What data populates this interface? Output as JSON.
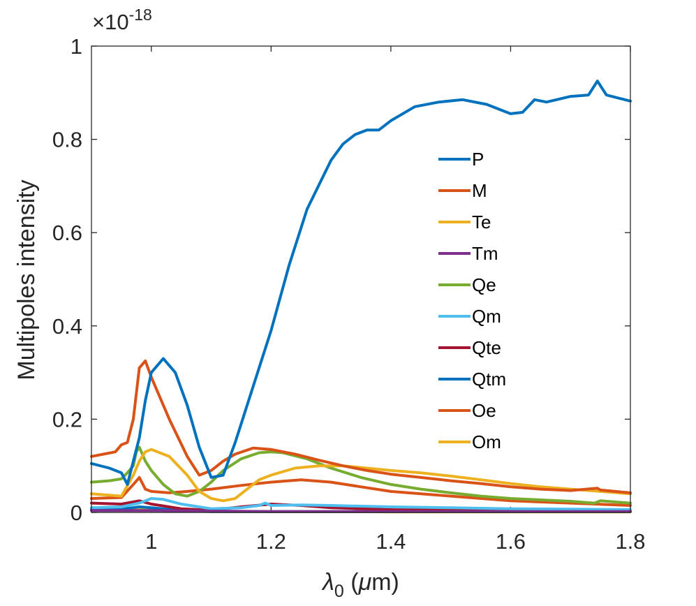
{
  "chart_data": {
    "type": "line",
    "title": "",
    "xlabel": "λ0 (μm)",
    "xlabel_symbol": "λ",
    "xlabel_subscript": "0",
    "xlabel_unit_open": " (",
    "xlabel_unit_mu": "μ",
    "xlabel_unit_rest": "m)",
    "ylabel": "Multipoles intensity",
    "y_exponent_label": "×10-18",
    "y_exponent_base": "×10",
    "y_exponent_power": "-18",
    "xlim": [
      0.9,
      1.8
    ],
    "ylim": [
      0,
      1
    ],
    "xticks": [
      1,
      1.2,
      1.4,
      1.6,
      1.8
    ],
    "xtick_labels": [
      "1",
      "1.2",
      "1.4",
      "1.6",
      "1.8"
    ],
    "yticks": [
      0,
      0.2,
      0.4,
      0.6,
      0.8,
      1
    ],
    "ytick_labels": [
      "0",
      "0.2",
      "0.4",
      "0.6",
      "0.8",
      "1"
    ],
    "legend_position": "right",
    "grid": false,
    "series": [
      {
        "name": "P",
        "color": "#0072BD",
        "x": [
          0.9,
          0.93,
          0.95,
          0.96,
          0.97,
          0.98,
          0.99,
          1.0,
          1.02,
          1.04,
          1.06,
          1.08,
          1.1,
          1.12,
          1.14,
          1.17,
          1.2,
          1.23,
          1.26,
          1.3,
          1.32,
          1.34,
          1.36,
          1.38,
          1.4,
          1.44,
          1.48,
          1.52,
          1.56,
          1.58,
          1.6,
          1.62,
          1.64,
          1.66,
          1.7,
          1.73,
          1.745,
          1.76,
          1.8
        ],
        "values": [
          0.105,
          0.095,
          0.085,
          0.06,
          0.11,
          0.16,
          0.24,
          0.3,
          0.33,
          0.3,
          0.23,
          0.14,
          0.075,
          0.08,
          0.15,
          0.27,
          0.39,
          0.53,
          0.65,
          0.755,
          0.79,
          0.81,
          0.82,
          0.82,
          0.84,
          0.87,
          0.88,
          0.885,
          0.875,
          0.865,
          0.855,
          0.858,
          0.885,
          0.88,
          0.892,
          0.895,
          0.925,
          0.895,
          0.882
        ]
      },
      {
        "name": "M",
        "color": "#D95319",
        "x": [
          0.9,
          0.92,
          0.94,
          0.95,
          0.96,
          0.97,
          0.98,
          0.99,
          1.0,
          1.03,
          1.06,
          1.08,
          1.1,
          1.12,
          1.14,
          1.17,
          1.2,
          1.24,
          1.28,
          1.32,
          1.36,
          1.4,
          1.45,
          1.5,
          1.55,
          1.6,
          1.65,
          1.7,
          1.745,
          1.75,
          1.8
        ],
        "values": [
          0.12,
          0.125,
          0.13,
          0.145,
          0.15,
          0.2,
          0.31,
          0.325,
          0.29,
          0.2,
          0.12,
          0.08,
          0.09,
          0.11,
          0.125,
          0.138,
          0.135,
          0.125,
          0.112,
          0.1,
          0.09,
          0.082,
          0.075,
          0.068,
          0.062,
          0.055,
          0.05,
          0.047,
          0.052,
          0.048,
          0.042
        ]
      },
      {
        "name": "Te",
        "color": "#EDB120",
        "x": [
          0.9,
          0.95,
          0.97,
          0.98,
          0.99,
          1.0,
          1.03,
          1.06,
          1.08,
          1.1,
          1.12,
          1.14,
          1.16,
          1.18,
          1.2,
          1.24,
          1.28,
          1.32,
          1.36,
          1.4,
          1.45,
          1.5,
          1.55,
          1.6,
          1.65,
          1.7,
          1.75,
          1.8
        ],
        "values": [
          0.04,
          0.035,
          0.08,
          0.11,
          0.13,
          0.135,
          0.12,
          0.08,
          0.045,
          0.03,
          0.025,
          0.03,
          0.05,
          0.07,
          0.08,
          0.095,
          0.1,
          0.1,
          0.095,
          0.09,
          0.085,
          0.078,
          0.07,
          0.062,
          0.055,
          0.05,
          0.045,
          0.04
        ]
      },
      {
        "name": "Tm",
        "color": "#7E2F8E",
        "x": [
          0.9,
          1.0,
          1.1,
          1.2,
          1.3,
          1.4,
          1.5,
          1.6,
          1.7,
          1.8
        ],
        "values": [
          0.004,
          0.004,
          0.003,
          0.002,
          0.002,
          0.002,
          0.002,
          0.002,
          0.002,
          0.002
        ]
      },
      {
        "name": "Qe",
        "color": "#77AC30",
        "x": [
          0.9,
          0.93,
          0.95,
          0.96,
          0.97,
          0.975,
          0.98,
          0.99,
          1.0,
          1.02,
          1.04,
          1.06,
          1.08,
          1.1,
          1.12,
          1.15,
          1.18,
          1.2,
          1.22,
          1.26,
          1.3,
          1.35,
          1.4,
          1.45,
          1.5,
          1.55,
          1.6,
          1.65,
          1.7,
          1.74,
          1.75,
          1.8
        ],
        "values": [
          0.065,
          0.068,
          0.072,
          0.085,
          0.1,
          0.13,
          0.14,
          0.11,
          0.09,
          0.06,
          0.04,
          0.035,
          0.045,
          0.065,
          0.09,
          0.115,
          0.128,
          0.13,
          0.128,
          0.115,
          0.095,
          0.075,
          0.06,
          0.05,
          0.042,
          0.035,
          0.03,
          0.027,
          0.024,
          0.02,
          0.025,
          0.02
        ]
      },
      {
        "name": "Qm",
        "color": "#4DBEEE",
        "x": [
          0.9,
          0.95,
          0.98,
          1.0,
          1.02,
          1.05,
          1.1,
          1.15,
          1.18,
          1.19,
          1.2,
          1.25,
          1.3,
          1.4,
          1.5,
          1.6,
          1.7,
          1.8
        ],
        "values": [
          0.01,
          0.012,
          0.02,
          0.03,
          0.028,
          0.018,
          0.008,
          0.01,
          0.015,
          0.02,
          0.015,
          0.016,
          0.015,
          0.012,
          0.01,
          0.008,
          0.007,
          0.006
        ]
      },
      {
        "name": "Qte",
        "color": "#A2142F",
        "x": [
          0.9,
          0.95,
          0.98,
          1.0,
          1.05,
          1.1,
          1.15,
          1.2,
          1.25,
          1.3,
          1.4,
          1.5,
          1.6,
          1.7,
          1.8
        ],
        "values": [
          0.02,
          0.018,
          0.025,
          0.018,
          0.008,
          0.005,
          0.012,
          0.018,
          0.015,
          0.01,
          0.006,
          0.005,
          0.004,
          0.004,
          0.003
        ]
      },
      {
        "name": "Qtm",
        "color": "#0072BD",
        "x": [
          0.9,
          0.95,
          0.98,
          1.0,
          1.05,
          1.1,
          1.2,
          1.3,
          1.4,
          1.5,
          1.6,
          1.7,
          1.8
        ],
        "values": [
          0.008,
          0.007,
          0.012,
          0.01,
          0.004,
          0.002,
          0.002,
          0.002,
          0.002,
          0.002,
          0.002,
          0.002,
          0.002
        ]
      },
      {
        "name": "Oe",
        "color": "#D95319",
        "x": [
          0.9,
          0.95,
          0.97,
          0.98,
          0.99,
          1.0,
          1.03,
          1.06,
          1.1,
          1.15,
          1.2,
          1.25,
          1.3,
          1.35,
          1.4,
          1.5,
          1.6,
          1.7,
          1.8
        ],
        "values": [
          0.03,
          0.032,
          0.06,
          0.075,
          0.05,
          0.045,
          0.042,
          0.045,
          0.05,
          0.058,
          0.065,
          0.07,
          0.065,
          0.055,
          0.045,
          0.035,
          0.025,
          0.02,
          0.015
        ]
      },
      {
        "name": "Om",
        "color": "#EDB120",
        "x": [
          0.9,
          0.95,
          0.98,
          1.0,
          1.05,
          1.1,
          1.2,
          1.3,
          1.4,
          1.5,
          1.6,
          1.7,
          1.8
        ],
        "values": [
          0.006,
          0.005,
          0.008,
          0.006,
          0.003,
          0.002,
          0.002,
          0.002,
          0.001,
          0.001,
          0.001,
          0.001,
          0.001
        ]
      }
    ]
  }
}
